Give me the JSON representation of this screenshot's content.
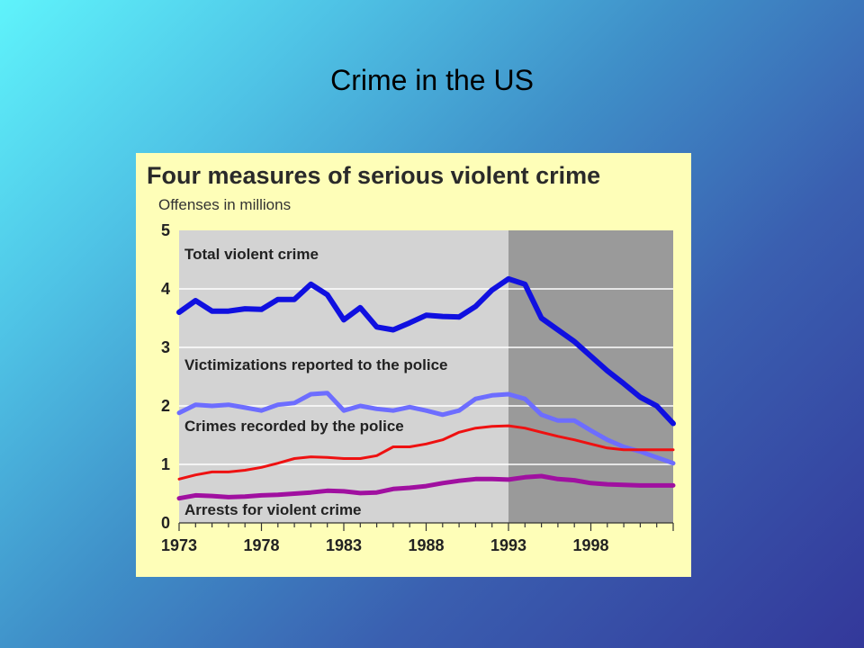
{
  "slide": {
    "title": "Crime in the US"
  },
  "chart_data": {
    "type": "line",
    "title": "Four measures of serious violent crime",
    "ylabel": "Offenses in millions",
    "xlabel": "",
    "xlim": [
      1973,
      2003
    ],
    "ylim": [
      0,
      5
    ],
    "yticks": [
      "0",
      "1",
      "2",
      "3",
      "4",
      "5"
    ],
    "xticks": [
      "1973",
      "1978",
      "1983",
      "1988",
      "1993",
      "1998"
    ],
    "grid": true,
    "shaded_region": {
      "from": 1993,
      "to": 2003
    },
    "colors": {
      "background": "#fefeb8",
      "plot": "#d3d3d3",
      "shaded": "#9a9a9a",
      "grid": "#ffffff"
    },
    "x": [
      1973,
      1974,
      1975,
      1976,
      1977,
      1978,
      1979,
      1980,
      1981,
      1982,
      1983,
      1984,
      1985,
      1986,
      1987,
      1988,
      1989,
      1990,
      1991,
      1992,
      1993,
      1994,
      1995,
      1996,
      1997,
      1998,
      1999,
      2000,
      2001,
      2002,
      2003
    ],
    "series": [
      {
        "name": "Total violent crime",
        "color": "#1010e0",
        "width": 6,
        "values": [
          3.6,
          3.8,
          3.62,
          3.62,
          3.66,
          3.65,
          3.82,
          3.82,
          4.08,
          3.9,
          3.47,
          3.68,
          3.35,
          3.3,
          3.42,
          3.55,
          3.53,
          3.52,
          3.7,
          3.98,
          4.17,
          4.08,
          3.5,
          3.3,
          3.1,
          2.85,
          2.6,
          2.38,
          2.15,
          2.0,
          1.7
        ]
      },
      {
        "name": "Victimizations reported to the police",
        "color": "#6d6dff",
        "width": 5,
        "values": [
          1.88,
          2.02,
          2.0,
          2.02,
          1.97,
          1.92,
          2.02,
          2.05,
          2.2,
          2.22,
          1.92,
          2.0,
          1.95,
          1.92,
          1.98,
          1.92,
          1.85,
          1.92,
          2.12,
          2.18,
          2.2,
          2.12,
          1.85,
          1.75,
          1.75,
          1.58,
          1.42,
          1.3,
          1.22,
          1.12,
          1.02
        ]
      },
      {
        "name": "Crimes recorded by the police",
        "color": "#ee1111",
        "width": 3,
        "values": [
          0.75,
          0.82,
          0.87,
          0.87,
          0.9,
          0.95,
          1.02,
          1.1,
          1.13,
          1.12,
          1.1,
          1.1,
          1.15,
          1.3,
          1.3,
          1.35,
          1.42,
          1.55,
          1.62,
          1.65,
          1.66,
          1.62,
          1.55,
          1.48,
          1.42,
          1.35,
          1.28,
          1.25,
          1.25,
          1.25,
          1.25
        ]
      },
      {
        "name": "Arrests for violent crime",
        "color": "#a010a0",
        "width": 5,
        "values": [
          0.42,
          0.47,
          0.46,
          0.44,
          0.45,
          0.47,
          0.48,
          0.5,
          0.52,
          0.55,
          0.54,
          0.51,
          0.52,
          0.58,
          0.6,
          0.63,
          0.68,
          0.72,
          0.75,
          0.75,
          0.74,
          0.78,
          0.8,
          0.75,
          0.73,
          0.68,
          0.66,
          0.65,
          0.64,
          0.64,
          0.64
        ]
      }
    ]
  }
}
